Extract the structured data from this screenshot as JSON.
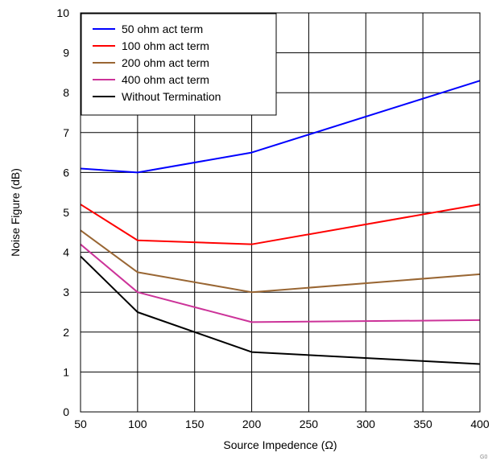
{
  "chart_data": {
    "type": "line",
    "xlabel": "Source Impedence (Ω)",
    "ylabel": "Noise Figure (dB)",
    "xlim": [
      50,
      400
    ],
    "ylim": [
      0,
      10
    ],
    "x_ticks": [
      50,
      100,
      150,
      200,
      250,
      300,
      350,
      400
    ],
    "y_ticks": [
      0,
      1,
      2,
      3,
      4,
      5,
      6,
      7,
      8,
      9,
      10
    ],
    "grid": true,
    "legend_position": "top-left",
    "series": [
      {
        "name": "50 ohm act term",
        "color": "#0000ff",
        "x": [
          50,
          100,
          200,
          400
        ],
        "values": [
          6.1,
          6.0,
          6.5,
          8.3
        ]
      },
      {
        "name": "100 ohm act term",
        "color": "#ff0000",
        "x": [
          50,
          100,
          200,
          400
        ],
        "values": [
          5.2,
          4.3,
          4.2,
          5.2
        ]
      },
      {
        "name": "200 ohm act term",
        "color": "#996633",
        "x": [
          50,
          100,
          200,
          400
        ],
        "values": [
          4.55,
          3.5,
          3.0,
          3.45
        ]
      },
      {
        "name": "400 ohm act term",
        "color": "#cc3399",
        "x": [
          50,
          100,
          200,
          400
        ],
        "values": [
          4.2,
          3.0,
          2.25,
          2.3
        ]
      },
      {
        "name": "Without Termination",
        "color": "#000000",
        "x": [
          50,
          100,
          200,
          400
        ],
        "values": [
          3.9,
          2.5,
          1.5,
          1.2
        ]
      }
    ],
    "corner_mark": "G0"
  }
}
